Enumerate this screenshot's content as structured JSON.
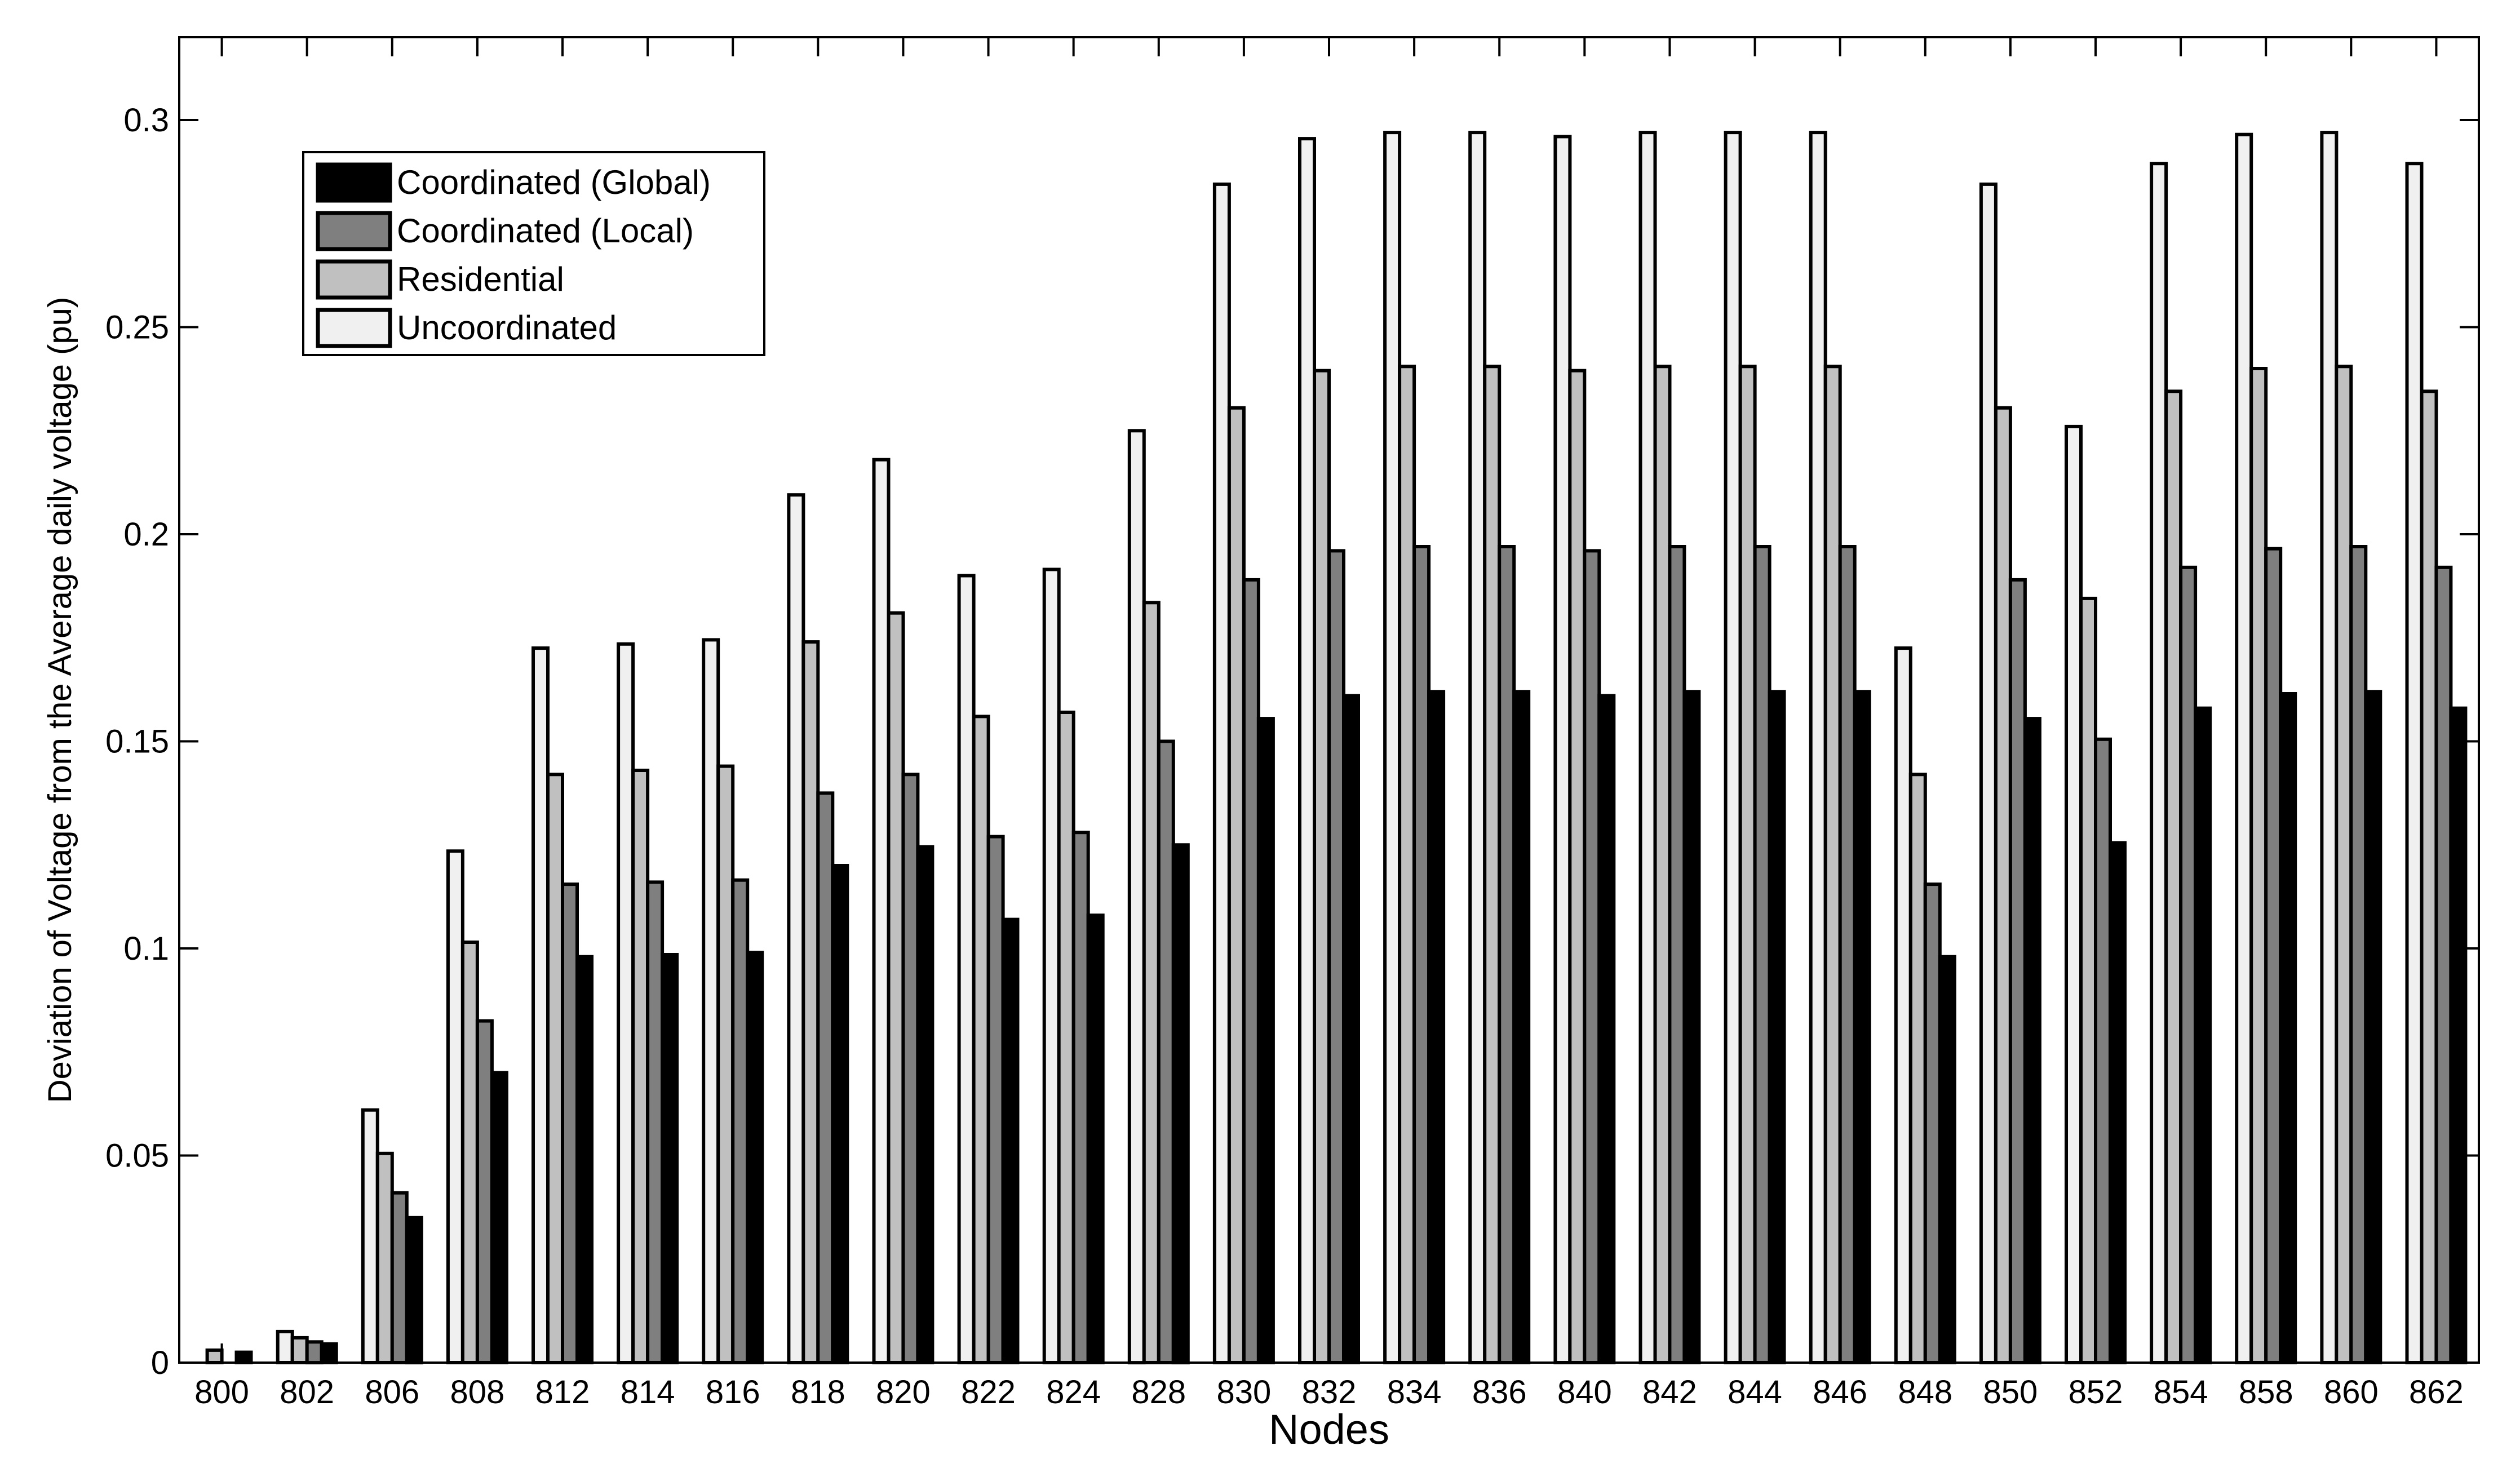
{
  "chart_data": {
    "type": "bar",
    "title": "",
    "xlabel": "Nodes",
    "ylabel": "Deviation of Voltage from the Average daily voltage (pu)",
    "ylim": [
      0,
      0.32
    ],
    "yticks": [
      0,
      0.05,
      0.1,
      0.15,
      0.2,
      0.25,
      0.3
    ],
    "ytick_labels": [
      "0",
      "0.05",
      "0.1",
      "0.15",
      "0.2",
      "0.25",
      "0.3"
    ],
    "grid": false,
    "legend_position": "top-left",
    "categories": [
      "800",
      "802",
      "806",
      "808",
      "812",
      "814",
      "816",
      "818",
      "820",
      "822",
      "824",
      "828",
      "830",
      "832",
      "834",
      "836",
      "840",
      "842",
      "844",
      "846",
      "848",
      "850",
      "852",
      "854",
      "858",
      "860",
      "862"
    ],
    "series": [
      {
        "name": "Uncoordinated",
        "color": "#f0f0f0",
        "values": [
          0,
          0.0075,
          0.061,
          0.1235,
          0.1725,
          0.1735,
          0.1745,
          0.2095,
          0.218,
          0.19,
          0.1915,
          0.225,
          0.2845,
          0.2955,
          0.297,
          0.297,
          0.296,
          0.297,
          0.297,
          0.297,
          0.1725,
          0.2845,
          0.226,
          0.2895,
          0.2965,
          0.297,
          0.2895
        ]
      },
      {
        "name": "Residential",
        "color": "#c0c0c0",
        "values": [
          0.003,
          0.006,
          0.0505,
          0.1015,
          0.142,
          0.143,
          0.144,
          0.174,
          0.181,
          0.156,
          0.157,
          0.1835,
          0.2305,
          0.2395,
          0.2405,
          0.2405,
          0.2395,
          0.2405,
          0.2405,
          0.2405,
          0.142,
          0.2305,
          0.1845,
          0.2345,
          0.24,
          0.2405,
          0.2345
        ]
      },
      {
        "name": "Coordinated (Local)",
        "color": "#7f7f7f",
        "values": [
          0,
          0.005,
          0.041,
          0.0825,
          0.1155,
          0.116,
          0.1165,
          0.1375,
          0.142,
          0.127,
          0.128,
          0.15,
          0.189,
          0.196,
          0.197,
          0.197,
          0.196,
          0.197,
          0.197,
          0.197,
          0.1155,
          0.189,
          0.1505,
          0.192,
          0.1965,
          0.197,
          0.192
        ]
      },
      {
        "name": "Coordinated (Global)",
        "color": "#000000",
        "values": [
          0.0025,
          0.0045,
          0.035,
          0.07,
          0.098,
          0.0985,
          0.099,
          0.12,
          0.1245,
          0.107,
          0.108,
          0.125,
          0.1555,
          0.161,
          0.162,
          0.162,
          0.161,
          0.162,
          0.162,
          0.162,
          0.098,
          0.1555,
          0.1255,
          0.158,
          0.1615,
          0.162,
          0.158
        ]
      }
    ],
    "legend_order": [
      "Coordinated (Global)",
      "Coordinated (Local)",
      "Residential",
      "Uncoordinated"
    ]
  }
}
